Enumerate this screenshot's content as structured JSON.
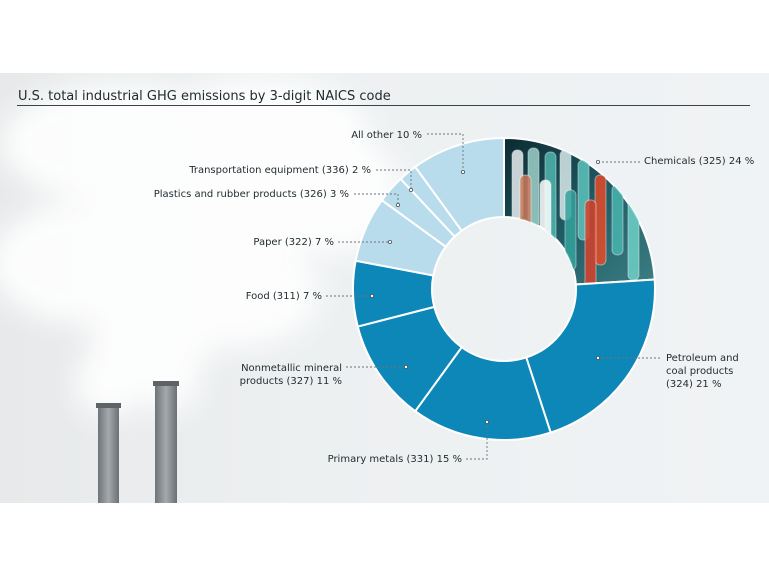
{
  "title": "U.S. total industrial GHG emissions by 3-digit NAICS code",
  "chart_data": {
    "type": "pie",
    "donut": true,
    "title": "U.S. total industrial GHG emissions by 3-digit NAICS code",
    "unit": "%",
    "slices": [
      {
        "label": "Chemicals (325) 24 %",
        "value": 24,
        "color": "#1b4a57",
        "fill": "photo-test-tubes"
      },
      {
        "label": "Petroleum and coal products (324) 21 %",
        "value": 21,
        "color": "#0c87b7"
      },
      {
        "label": "Primary metals (331) 15 %",
        "value": 15,
        "color": "#0c87b7"
      },
      {
        "label": "Nonmetallic mineral products (327) 11 %",
        "value": 11,
        "color": "#0c87b7"
      },
      {
        "label": "Food (311) 7 %",
        "value": 7,
        "color": "#0c87b7"
      },
      {
        "label": "Paper (322) 7 %",
        "value": 7,
        "color": "#b9dced"
      },
      {
        "label": "Plastics and rubber products (326) 3 %",
        "value": 3,
        "color": "#b9dced"
      },
      {
        "label": "Transportation equipment (336) 2 %",
        "value": 2,
        "color": "#b9dced"
      },
      {
        "label": "All other 10 %",
        "value": 10,
        "color": "#b9dced"
      }
    ],
    "label_lines": [
      [
        "Chemicals (325) 24 %"
      ],
      [
        "Petroleum and",
        "coal products",
        "(324) 21 %"
      ],
      [
        "Primary metals (331) 15 %"
      ],
      [
        "Nonmetallic mineral",
        "products (327) 11 %"
      ],
      [
        "Food (311) 7 %"
      ],
      [
        "Paper (322) 7 %"
      ],
      [
        "Plastics and rubber products (326) 3 %"
      ],
      [
        "Transportation equipment (336) 2 %"
      ],
      [
        "All other 10 %"
      ]
    ],
    "background": "smokestacks-photo"
  }
}
